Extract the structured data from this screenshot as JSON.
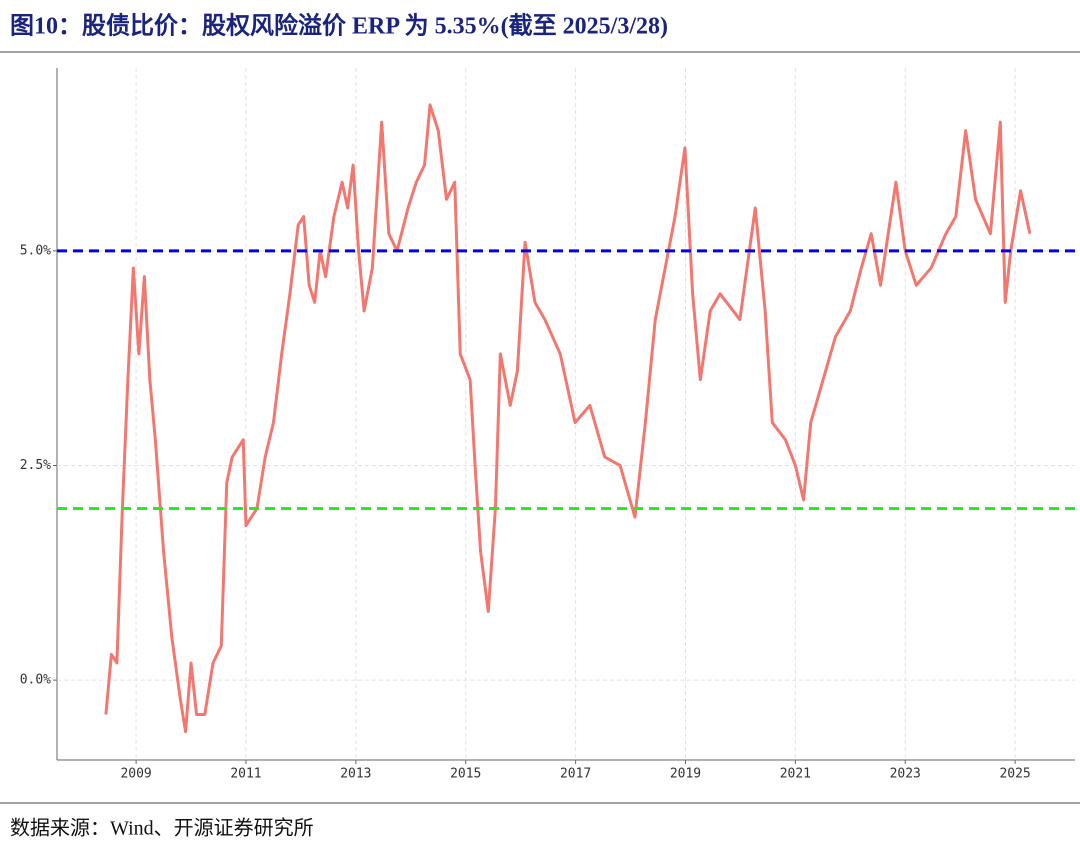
{
  "chart_data": {
    "type": "line",
    "title": "图10：股债比价：股权风险溢价 ERP 为 5.35%(截至 2025/3/28)",
    "source": "数据来源：Wind、开源证券研究所",
    "x": [
      2008.45,
      2008.55,
      2008.65,
      2008.75,
      2008.85,
      2008.95,
      2009.05,
      2009.15,
      2009.25,
      2009.35,
      2009.5,
      2009.65,
      2009.8,
      2009.9,
      2010.0,
      2010.1,
      2010.25,
      2010.4,
      2010.55,
      2010.65,
      2010.75,
      2010.85,
      2010.95,
      2011.0,
      2011.2,
      2011.35,
      2011.5,
      2011.65,
      2011.8,
      2011.95,
      2012.05,
      2012.15,
      2012.25,
      2012.35,
      2012.45,
      2012.6,
      2012.75,
      2012.85,
      2012.95,
      2013.05,
      2013.15,
      2013.3,
      2013.47,
      2013.6,
      2013.75,
      2013.95,
      2014.1,
      2014.25,
      2014.35,
      2014.5,
      2014.65,
      2014.8,
      2014.9,
      2015.08,
      2015.17,
      2015.27,
      2015.41,
      2015.54,
      2015.63,
      2015.81,
      2015.94,
      2016.08,
      2016.26,
      2016.44,
      2016.72,
      2016.99,
      2017.26,
      2017.53,
      2017.81,
      2018.08,
      2018.27,
      2018.45,
      2018.63,
      2018.81,
      2018.99,
      2019.13,
      2019.27,
      2019.45,
      2019.63,
      2019.99,
      2020.27,
      2020.45,
      2020.58,
      2020.82,
      2021.0,
      2021.15,
      2021.28,
      2021.46,
      2021.73,
      2022.0,
      2022.2,
      2022.38,
      2022.55,
      2022.83,
      2023.0,
      2023.2,
      2023.47,
      2023.74,
      2023.92,
      2024.1,
      2024.28,
      2024.55,
      2024.73,
      2024.82,
      2024.92,
      2025.1,
      2025.27
    ],
    "series": [
      {
        "name": "ERP",
        "color": "#f4776f",
        "values": [
          -0.4,
          0.3,
          0.2,
          2.0,
          3.5,
          4.8,
          3.8,
          4.7,
          3.5,
          2.8,
          1.5,
          0.5,
          -0.2,
          -0.6,
          0.2,
          -0.4,
          -0.4,
          0.2,
          0.4,
          2.3,
          2.6,
          2.7,
          2.8,
          1.8,
          2.0,
          2.6,
          3.0,
          3.8,
          4.5,
          5.3,
          5.4,
          4.6,
          4.4,
          5.0,
          4.7,
          5.4,
          5.8,
          5.5,
          6.0,
          5.0,
          4.3,
          4.8,
          6.5,
          5.2,
          5.0,
          5.5,
          5.8,
          6.0,
          6.7,
          6.4,
          5.6,
          5.8,
          3.8,
          3.5,
          2.5,
          1.5,
          0.8,
          2.0,
          3.8,
          3.2,
          3.6,
          5.1,
          4.4,
          4.2,
          3.8,
          3.0,
          3.2,
          2.6,
          2.5,
          1.9,
          3.0,
          4.2,
          4.8,
          5.4,
          6.2,
          4.5,
          3.5,
          4.3,
          4.5,
          4.2,
          5.5,
          4.3,
          3.0,
          2.8,
          2.5,
          2.1,
          3.0,
          3.4,
          4.0,
          4.3,
          4.8,
          5.2,
          4.6,
          5.8,
          5.0,
          4.6,
          4.8,
          5.2,
          5.4,
          6.4,
          5.6,
          5.2,
          6.5,
          4.4,
          5.0,
          5.7,
          5.2
        ]
      }
    ],
    "reference_lines": [
      {
        "value": 5.0,
        "color": "#0000ee"
      },
      {
        "value": 2.0,
        "color": "#22ee22"
      }
    ],
    "xlim": [
      2007.56,
      2026.09
    ],
    "xticks": [
      2009,
      2011,
      2013,
      2015,
      2017,
      2019,
      2021,
      2023,
      2025
    ],
    "ylim": [
      -0.93,
      7.13
    ],
    "yticks": [
      {
        "value": 0,
        "label": "0.0%"
      },
      {
        "value": 2.5,
        "label": "2.5%"
      },
      {
        "value": 5,
        "label": "5.0%"
      }
    ],
    "grid": true
  }
}
